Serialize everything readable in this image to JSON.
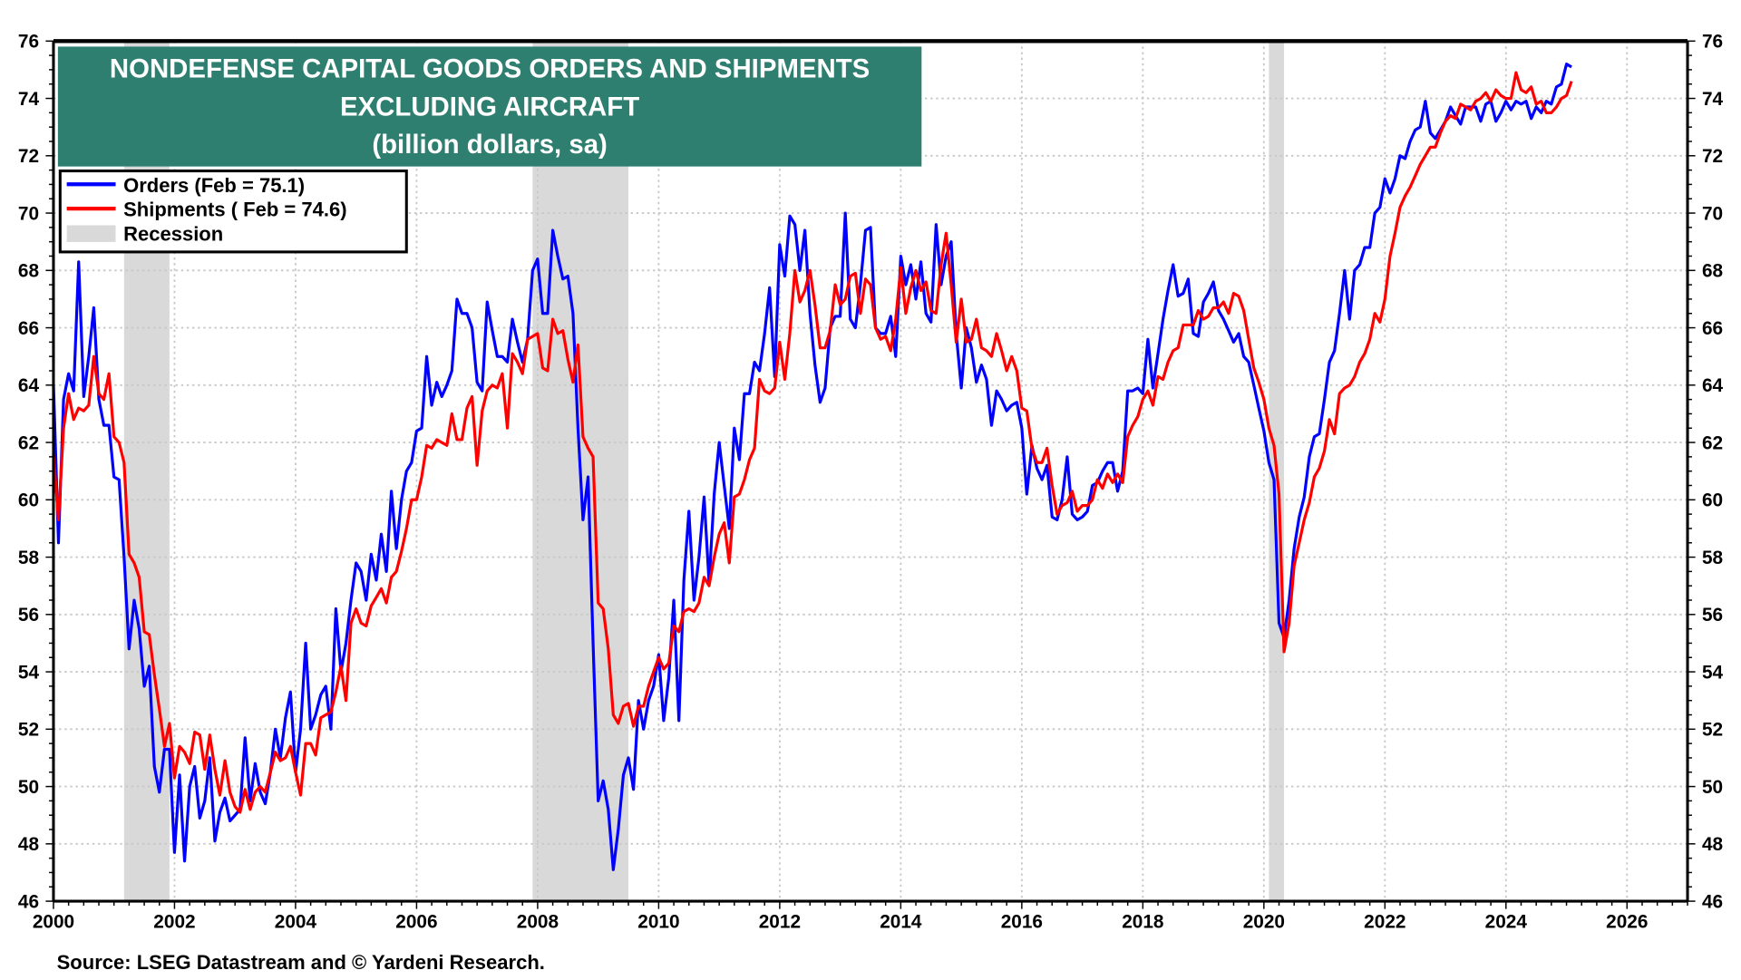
{
  "chart_data": {
    "type": "line",
    "title_lines": [
      "NONDEFENSE CAPITAL GOODS ORDERS AND SHIPMENTS",
      "EXCLUDING AIRCRAFT",
      "(billion dollars, sa)"
    ],
    "source": "Source: LSEG Datastream and © Yardeni Research.",
    "xlim": [
      2000,
      2027
    ],
    "ylim": [
      46,
      76
    ],
    "x_ticks": [
      "2000",
      "2002",
      "2004",
      "2006",
      "2008",
      "2010",
      "2012",
      "2014",
      "2016",
      "2018",
      "2020",
      "2022",
      "2024",
      "2026"
    ],
    "y_ticks": [
      "46",
      "48",
      "50",
      "52",
      "54",
      "56",
      "58",
      "60",
      "62",
      "64",
      "66",
      "68",
      "70",
      "72",
      "74",
      "76"
    ],
    "grid": true,
    "legend_placement": "top-left",
    "dual_y_axis_labels": true,
    "colors": {
      "orders": "#0000ff",
      "shipments": "#ff0000",
      "recession": "#d9d9d9",
      "title_bg": "#2f7f71"
    },
    "legend": {
      "orders": "Orders (Feb = 75.1)",
      "shipments": "Shipments ( Feb = 74.6)",
      "recession": "Recession"
    },
    "recessions": [
      [
        "2001-03",
        "2001-11"
      ],
      [
        "2007-12",
        "2009-06"
      ],
      [
        "2020-02",
        "2020-04"
      ]
    ],
    "frequency": "monthly",
    "series": [
      {
        "name": "Orders (Feb = 75.1)",
        "first_month": "2000-01",
        "values": [
          64.0,
          58.5,
          63.5,
          64.4,
          63.8,
          68.3,
          63.6,
          65.0,
          66.7,
          63.5,
          62.6,
          62.6,
          60.8,
          60.7,
          58.0,
          54.8,
          56.5,
          55.5,
          53.5,
          54.2,
          50.7,
          49.8,
          51.3,
          51.3,
          47.7,
          50.4,
          47.4,
          50.0,
          50.7,
          48.9,
          49.5,
          51.0,
          48.1,
          49.1,
          49.6,
          48.8,
          49.0,
          49.2,
          51.7,
          49.5,
          50.8,
          49.8,
          49.4,
          50.5,
          52.0,
          51.0,
          52.4,
          53.3,
          50.5,
          52.0,
          55.0,
          52.0,
          52.5,
          53.2,
          53.5,
          52.0,
          56.2,
          54.0,
          55.0,
          56.5,
          57.8,
          57.5,
          56.5,
          58.1,
          57.2,
          58.8,
          57.5,
          60.3,
          58.3,
          60.0,
          61.0,
          61.3,
          62.4,
          62.5,
          65.0,
          63.3,
          64.1,
          63.6,
          64.0,
          64.5,
          67.0,
          66.5,
          66.5,
          66.0,
          64.1,
          63.8,
          66.9,
          65.9,
          65.0,
          65.0,
          64.8,
          66.3,
          65.5,
          64.8,
          65.6,
          68.0,
          68.4,
          66.5,
          66.5,
          69.4,
          68.5,
          67.7,
          67.8,
          66.5,
          62.5,
          59.3,
          60.8,
          55.0,
          49.5,
          50.2,
          49.2,
          47.1,
          48.5,
          50.4,
          51.0,
          49.9,
          53.0,
          52.0,
          53.0,
          53.5,
          54.6,
          52.3,
          53.8,
          56.5,
          52.3,
          57.2,
          59.6,
          56.5,
          58.0,
          60.1,
          57.1,
          60.2,
          62.0,
          60.5,
          59.0,
          62.5,
          61.4,
          63.7,
          63.7,
          64.8,
          64.5,
          65.8,
          67.4,
          64.3,
          68.9,
          67.8,
          69.9,
          69.6,
          68.0,
          69.4,
          66.5,
          64.7,
          63.4,
          63.9,
          66.0,
          66.4,
          66.4,
          70.0,
          66.3,
          66.0,
          67.5,
          69.4,
          69.5,
          66.0,
          65.8,
          65.8,
          66.4,
          65.0,
          68.5,
          67.5,
          68.2,
          67.0,
          68.3,
          66.5,
          66.2,
          69.6,
          67.5,
          68.5,
          69.0,
          65.8,
          63.9,
          66.0,
          65.3,
          64.1,
          64.7,
          64.2,
          62.6,
          63.8,
          63.5,
          63.1,
          63.3,
          63.4,
          62.5,
          60.2,
          61.9,
          61.1,
          60.7,
          61.2,
          59.4,
          59.3,
          60.0,
          61.5,
          59.5,
          59.3,
          59.4,
          59.6,
          60.5,
          60.6,
          61.0,
          61.3,
          61.3,
          60.3,
          61.0,
          63.8,
          63.8,
          63.9,
          63.7,
          65.6,
          63.9,
          65.1,
          66.3,
          67.3,
          68.2,
          67.1,
          67.2,
          67.7,
          65.8,
          65.7,
          66.9,
          67.2,
          67.6,
          66.6,
          66.3,
          65.9,
          65.5,
          65.8,
          65.0,
          64.8,
          64.0,
          63.2,
          62.4,
          61.3,
          60.7,
          55.7,
          55.2,
          56.5,
          58.3,
          59.4,
          60.1,
          61.5,
          62.2,
          62.3,
          63.5,
          64.8,
          65.2,
          66.5,
          68.0,
          66.3,
          68.0,
          68.2,
          68.8,
          68.8,
          70.0,
          70.2,
          71.2,
          70.7,
          71.2,
          72.0,
          71.9,
          72.5,
          72.9,
          73.0,
          73.9,
          72.8,
          72.6,
          72.9,
          73.2,
          73.7,
          73.4,
          73.1,
          73.7,
          73.7,
          73.7,
          73.2,
          73.8,
          73.9,
          73.2,
          73.5,
          73.9,
          73.6,
          73.9,
          73.8,
          73.9,
          73.3,
          73.7,
          73.5,
          73.9,
          73.8,
          74.4,
          74.5,
          75.2,
          75.1
        ]
      },
      {
        "name": "Shipments ( Feb = 74.6)",
        "first_month": "2000-01",
        "values": [
          61.6,
          59.3,
          62.5,
          63.7,
          62.8,
          63.2,
          63.1,
          63.3,
          65.0,
          63.7,
          63.5,
          64.4,
          62.2,
          62.0,
          61.3,
          58.1,
          57.8,
          57.3,
          55.4,
          55.3,
          53.9,
          52.7,
          51.4,
          52.2,
          50.3,
          51.4,
          51.2,
          50.8,
          51.9,
          51.8,
          50.6,
          51.8,
          50.6,
          49.7,
          50.9,
          49.8,
          49.3,
          49.1,
          49.9,
          49.2,
          49.8,
          50.0,
          49.8,
          50.5,
          51.2,
          50.9,
          51.0,
          51.4,
          50.5,
          49.7,
          51.5,
          51.5,
          51.1,
          52.4,
          52.5,
          52.6,
          53.3,
          54.2,
          53.0,
          55.7,
          56.2,
          55.7,
          55.6,
          56.3,
          56.6,
          56.9,
          56.4,
          57.3,
          57.5,
          58.2,
          59.0,
          60.0,
          60.0,
          60.8,
          61.9,
          61.8,
          62.1,
          62.0,
          61.9,
          63.0,
          62.1,
          62.1,
          63.2,
          63.6,
          61.2,
          63.1,
          63.8,
          64.0,
          63.9,
          64.4,
          62.5,
          65.1,
          64.8,
          64.4,
          65.6,
          65.7,
          65.8,
          64.6,
          64.5,
          66.3,
          65.8,
          65.9,
          64.9,
          64.1,
          65.4,
          62.2,
          61.8,
          61.5,
          56.4,
          56.2,
          54.8,
          52.5,
          52.2,
          52.8,
          52.9,
          52.1,
          52.8,
          52.8,
          53.5,
          54.0,
          54.5,
          54.1,
          54.3,
          55.6,
          55.4,
          56.1,
          56.2,
          56.1,
          56.4,
          57.3,
          57.0,
          58.0,
          58.8,
          59.2,
          57.8,
          60.1,
          60.2,
          60.7,
          61.4,
          61.8,
          64.2,
          63.8,
          63.7,
          63.9,
          65.5,
          64.2,
          65.8,
          68.0,
          66.9,
          67.3,
          68.0,
          66.8,
          65.3,
          65.3,
          65.9,
          67.5,
          66.8,
          67.0,
          67.8,
          67.9,
          66.5,
          67.7,
          67.5,
          66.0,
          65.6,
          65.7,
          65.2,
          66.3,
          68.1,
          66.5,
          67.4,
          68.0,
          67.3,
          67.6,
          66.6,
          66.5,
          68.2,
          69.3,
          67.5,
          65.5,
          67.0,
          65.5,
          65.6,
          66.3,
          65.3,
          65.2,
          65.0,
          65.8,
          65.2,
          64.5,
          65.0,
          64.5,
          63.2,
          63.1,
          61.8,
          61.3,
          61.3,
          61.8,
          60.5,
          59.5,
          59.8,
          59.9,
          60.3,
          59.6,
          59.8,
          59.8,
          60.0,
          60.7,
          60.4,
          60.9,
          60.6,
          60.9,
          60.6,
          62.2,
          62.6,
          62.9,
          63.5,
          63.8,
          63.3,
          64.3,
          64.2,
          64.8,
          65.2,
          65.3,
          66.1,
          66.1,
          66.1,
          66.6,
          66.3,
          66.4,
          66.7,
          66.7,
          66.9,
          66.5,
          67.2,
          67.1,
          66.6,
          65.6,
          64.6,
          64.1,
          63.5,
          62.5,
          61.9,
          60.2,
          54.7,
          55.7,
          57.7,
          58.5,
          59.3,
          59.9,
          60.8,
          61.1,
          61.7,
          62.8,
          62.3,
          63.7,
          63.9,
          64.0,
          64.3,
          64.8,
          65.1,
          65.6,
          66.5,
          66.2,
          67.0,
          68.5,
          69.3,
          70.2,
          70.6,
          70.9,
          71.3,
          71.7,
          72.0,
          72.3,
          72.3,
          72.8,
          73.2,
          73.4,
          73.3,
          73.8,
          73.7,
          73.6,
          73.9,
          74.0,
          74.2,
          73.9,
          74.3,
          74.1,
          74.0,
          74.0,
          74.9,
          74.3,
          74.2,
          74.4,
          73.8,
          73.9,
          73.5,
          73.5,
          73.7,
          74.0,
          74.1,
          74.6
        ]
      }
    ]
  }
}
